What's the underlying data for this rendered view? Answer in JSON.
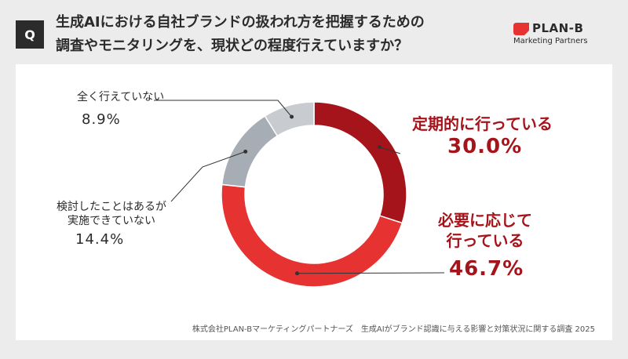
{
  "header": {
    "q_badge": "Q",
    "title_line1": "生成AIにおける自社ブランドの扱われ方を把握するための",
    "title_line2": "調査やモニタリングを、現状どの程度行えていますか？"
  },
  "logo": {
    "name": "PLAN-B",
    "subtitle": "Marketing Partners"
  },
  "colors": {
    "dark_red": "#a6141b",
    "red": "#e63332",
    "grey": "#a6adb5",
    "light_grey": "#c8cbcf",
    "leader": "#333333"
  },
  "chart_data": {
    "type": "pie",
    "donut": true,
    "title": "",
    "slices": [
      {
        "label": "定期的に行っている",
        "value": 30.0,
        "display": "30.0%"
      },
      {
        "label": "必要に応じて行っている",
        "value": 46.7,
        "display": "46.7%"
      },
      {
        "label": "検討したことはあるが実施できていない",
        "value": 14.4,
        "display": "14.4%"
      },
      {
        "label": "全く行えていない",
        "value": 8.9,
        "display": "8.9%"
      }
    ]
  },
  "labels": {
    "regular": {
      "label": "定期的に行っている",
      "value": "30.0%"
    },
    "as_needed": {
      "line1": "必要に応じて",
      "line2": "行っている",
      "value": "46.7%"
    },
    "considered": {
      "line1": "検討したことはあるが",
      "line2": "実施できていない",
      "value": "14.4%"
    },
    "none": {
      "label": "全く行えていない",
      "value": "8.9%"
    }
  },
  "footnote": "株式会社PLAN-Bマーケティングパートナーズ　生成AIがブランド認識に与える影響と対策状況に関する調査 2025"
}
